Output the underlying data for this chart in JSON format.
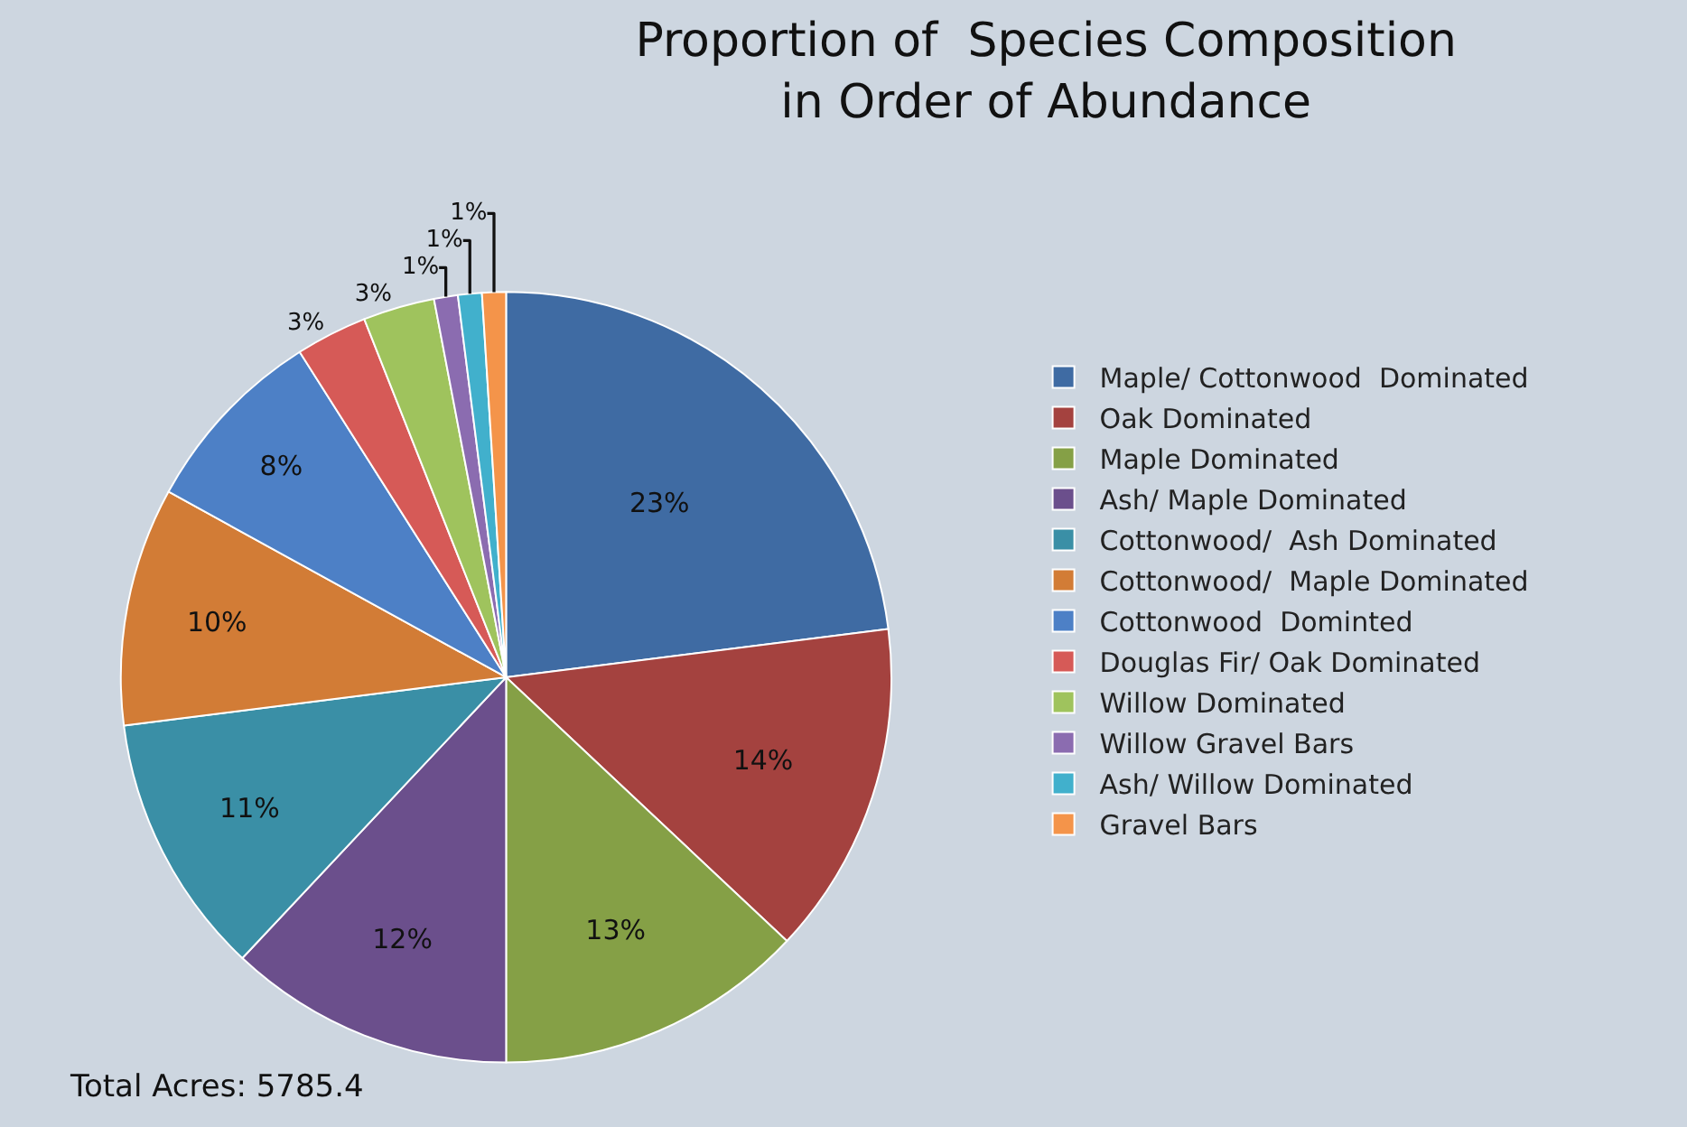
{
  "chart_data": {
    "type": "pie",
    "title": "Proportion of  Species Composition in Order of Abundance",
    "categories": [
      "Maple/ Cottonwood  Dominated",
      "Oak Dominated",
      "Maple Dominated",
      "Ash/ Maple Dominated",
      "Cottonwood/  Ash Dominated",
      "Cottonwood/  Maple Dominated",
      "Cottonwood  Dominted",
      "Douglas Fir/ Oak Dominated",
      "Willow Dominated",
      "Willow Gravel Bars",
      "Ash/ Willow Dominated",
      "Gravel Bars"
    ],
    "values": [
      23,
      14,
      13,
      12,
      11,
      10,
      8,
      3,
      3,
      1,
      1,
      1
    ],
    "colors": [
      "#3f6ba3",
      "#a4423f",
      "#85a046",
      "#6b4f8c",
      "#3a8fa6",
      "#d27c36",
      "#4d80c6",
      "#d65a57",
      "#9fc35d",
      "#8b6cb0",
      "#41b0cc",
      "#f4944a"
    ],
    "value_labels": [
      "23%",
      "14%",
      "13%",
      "12%",
      "11%",
      "10%",
      "8%",
      "3%",
      "3%",
      "1%",
      "1%",
      "1%"
    ],
    "legend": "right",
    "annotations": [
      "Total Acres: 5785.4"
    ]
  }
}
